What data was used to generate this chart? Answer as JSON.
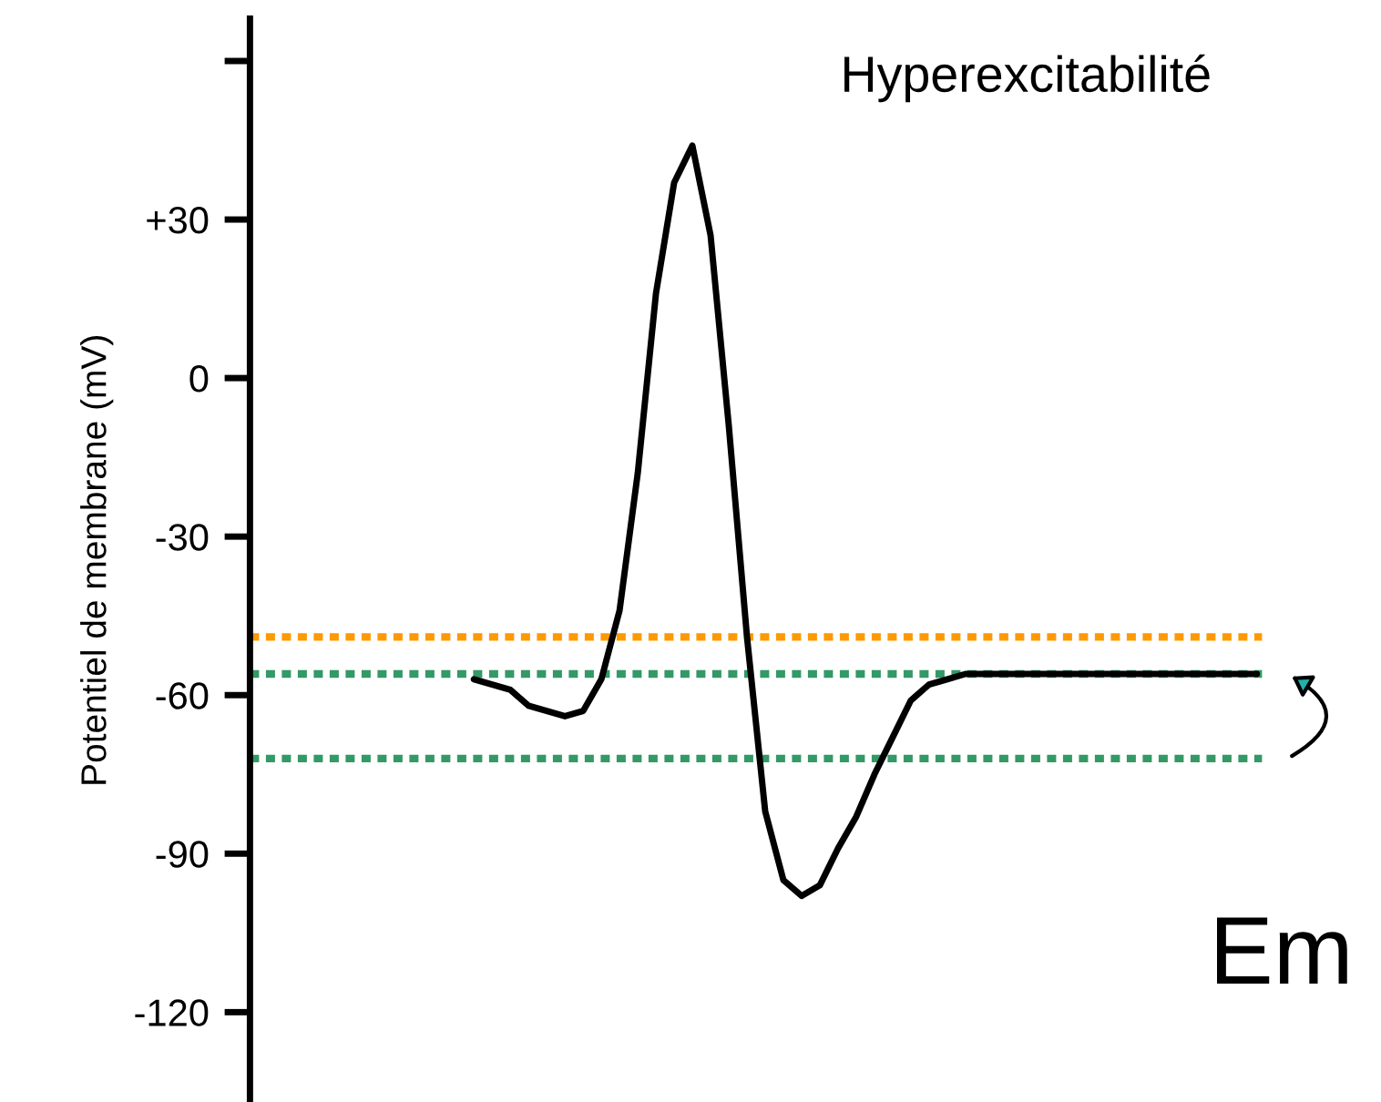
{
  "chart_data": {
    "type": "line",
    "title": "Hyperexcitabilité",
    "ylabel": "Potentiel de membrane (mV)",
    "annotations": [
      "Em"
    ],
    "categories": [
      null,
      null,
      null,
      null,
      null,
      null,
      null,
      null,
      null,
      null,
      null,
      null,
      null,
      null,
      null,
      null,
      null,
      null,
      null,
      null,
      null,
      null,
      null,
      null,
      null,
      null,
      null,
      null,
      null,
      null,
      null,
      null,
      null,
      null,
      null,
      null,
      null,
      null,
      null,
      null,
      null,
      null,
      null,
      null,
      null,
      null,
      null,
      null,
      null,
      null,
      null,
      null,
      null,
      null,
      null,
      null
    ],
    "series": [
      {
        "color": "#000000",
        "values": [
          null,
          null,
          null,
          null,
          null,
          null,
          null,
          null,
          null,
          null,
          null,
          null,
          -57,
          -58,
          -59,
          -62,
          -63,
          -64,
          -63,
          -57,
          -44,
          -18,
          16,
          37,
          44,
          27,
          -9,
          -49,
          -82,
          -95,
          -98,
          -96,
          -89,
          -83,
          -75,
          -68,
          -61,
          -58,
          -57,
          -56,
          -56,
          -56,
          -56,
          -56,
          -56,
          -56,
          -56,
          -56,
          -56,
          -56,
          -56,
          -56,
          -56,
          -56,
          -56,
          -56
        ]
      }
    ],
    "ylim": [
      -137,
      68
    ],
    "yticks": [
      {
        "value": 60,
        "label": null
      },
      {
        "value": 30,
        "label": "+30"
      },
      0,
      -30,
      -60,
      -90,
      -120
    ],
    "tick_labels": "y",
    "ref_lines": [
      {
        "axis": "y",
        "value": -49,
        "color": "#ff9900",
        "line_style": "dotted"
      },
      {
        "axis": "y",
        "value": -56,
        "color": "#339966",
        "line_style": "dotted"
      },
      {
        "axis": "y",
        "value": -72,
        "color": "#339966",
        "line_style": "dotted"
      }
    ]
  }
}
